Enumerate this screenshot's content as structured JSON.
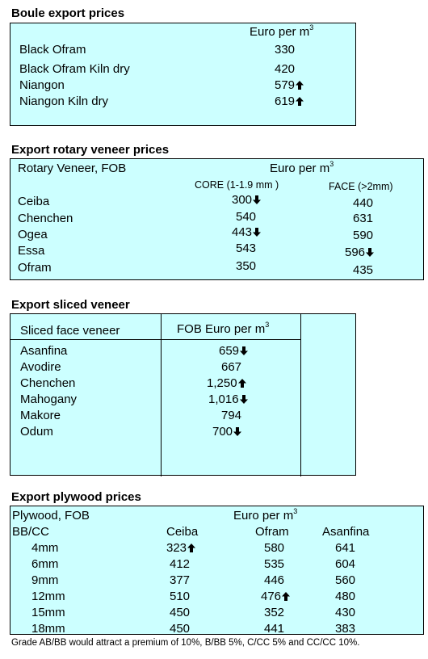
{
  "boule": {
    "title": "Boule export prices",
    "unit": "Euro per m",
    "unit_sup": "3",
    "rows": [
      {
        "name": "Black Ofram",
        "value": "330",
        "trend": ""
      },
      {
        "name": "Black Ofram  Kiln dry",
        "value": "420",
        "trend": ""
      },
      {
        "name": "Niangon",
        "value": "579",
        "trend": "up"
      },
      {
        "name": "Niangon Kiln dry",
        "value": "619",
        "trend": "up"
      }
    ]
  },
  "rotary": {
    "title": "Export rotary veneer prices",
    "label": "Rotary Veneer,  FOB",
    "unit": "Euro  per m",
    "unit_sup": "3",
    "col_core": "CORE (1-1.9 mm )",
    "col_face": "FACE (>2mm)",
    "rows": [
      {
        "name": "Ceiba",
        "core": "300",
        "core_trend": "down",
        "face": "440",
        "face_trend": ""
      },
      {
        "name": "Chenchen",
        "core": "540",
        "core_trend": "",
        "face": "631",
        "face_trend": ""
      },
      {
        "name": "Ogea",
        "core": "443",
        "core_trend": "down",
        "face": "590",
        "face_trend": ""
      },
      {
        "name": "Essa",
        "core": "543",
        "core_trend": "",
        "face": "596",
        "face_trend": "down"
      },
      {
        "name": "Ofram",
        "core": "350",
        "core_trend": "",
        "face": "435",
        "face_trend": ""
      }
    ]
  },
  "sliced": {
    "title": "Export sliced veneer",
    "col_name": "Sliced face veneer",
    "col_value": "FOB Euro per m",
    "col_value_sup": "3",
    "rows": [
      {
        "name": "Asanfina",
        "value": "659",
        "trend": "down"
      },
      {
        "name": "Avodire",
        "value": "667",
        "trend": ""
      },
      {
        "name": "Chenchen",
        "value": "1,250",
        "trend": "up"
      },
      {
        "name": "Mahogany",
        "value": "1,016",
        "trend": "down"
      },
      {
        "name": "Makore",
        "value": "794",
        "trend": ""
      },
      {
        "name": "Odum",
        "value": "700",
        "trend": "down"
      }
    ]
  },
  "plywood": {
    "title": "Export plywood prices",
    "label": "Plywood, FOB",
    "unit": "Euro per m",
    "unit_sup": "3",
    "grade": "BB/CC",
    "cols": [
      "Ceiba",
      "Ofram",
      "Asanfina"
    ],
    "rows": [
      {
        "size": "4mm",
        "ceiba": "323",
        "ceiba_trend": "up",
        "ofram": "580",
        "ofram_trend": "",
        "asanfina": "641"
      },
      {
        "size": "6mm",
        "ceiba": "412",
        "ceiba_trend": "",
        "ofram": "535",
        "ofram_trend": "",
        "asanfina": "604"
      },
      {
        "size": "9mm",
        "ceiba": "377",
        "ceiba_trend": "",
        "ofram": "446",
        "ofram_trend": "",
        "asanfina": "560"
      },
      {
        "size": "12mm",
        "ceiba": "510",
        "ceiba_trend": "",
        "ofram": "476",
        "ofram_trend": "up",
        "asanfina": "480"
      },
      {
        "size": "15mm",
        "ceiba": "450",
        "ceiba_trend": "",
        "ofram": "352",
        "ofram_trend": "",
        "asanfina": "430"
      },
      {
        "size": "18mm",
        "ceiba": "450",
        "ceiba_trend": "",
        "ofram": "441",
        "ofram_trend": "",
        "asanfina": "383"
      }
    ],
    "footnote": "Grade AB/BB would attract a premium of 10%, B/BB 5%, C/CC 5% and CC/CC 10%."
  }
}
